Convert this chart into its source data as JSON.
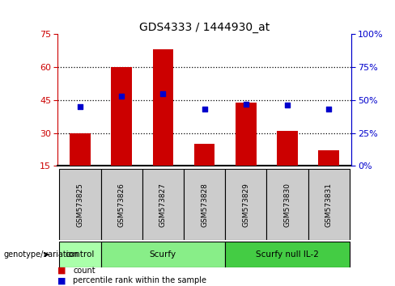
{
  "title": "GDS4333 / 1444930_at",
  "samples": [
    "GSM573825",
    "GSM573826",
    "GSM573827",
    "GSM573828",
    "GSM573829",
    "GSM573830",
    "GSM573831"
  ],
  "bar_heights": [
    30,
    60,
    68,
    25,
    44,
    31,
    22
  ],
  "bar_bottom": 15,
  "percentile_values": [
    45,
    53,
    55,
    43,
    47,
    46,
    43
  ],
  "ylim": [
    15,
    75
  ],
  "yticks": [
    15,
    30,
    45,
    60,
    75
  ],
  "y2lim": [
    0,
    100
  ],
  "y2ticks": [
    0,
    25,
    50,
    75,
    100
  ],
  "y2ticklabels": [
    "0%",
    "25%",
    "50%",
    "75%",
    "100%"
  ],
  "bar_color": "#cc0000",
  "dot_color": "#0000cc",
  "grid_yticks": [
    30,
    45,
    60
  ],
  "groups": [
    {
      "label": "control",
      "start": 0,
      "end": 1,
      "color": "#aaffaa"
    },
    {
      "label": "Scurfy",
      "start": 1,
      "end": 4,
      "color": "#88ee88"
    },
    {
      "label": "Scurfy null IL-2",
      "start": 4,
      "end": 7,
      "color": "#44cc44"
    }
  ],
  "sample_box_color": "#cccccc",
  "background_color": "#ffffff",
  "genotype_label": "genotype/variation"
}
